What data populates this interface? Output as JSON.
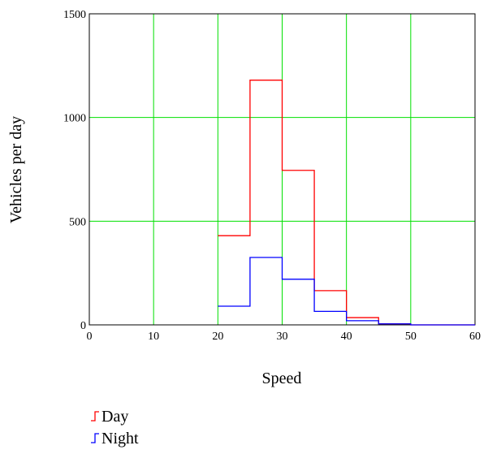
{
  "chart_data": {
    "type": "line",
    "style": "step",
    "xlabel": "Speed",
    "ylabel": "Vehicles per day",
    "xlim": [
      0,
      60
    ],
    "ylim": [
      0,
      1500
    ],
    "xticks": [
      "0",
      "10",
      "20",
      "30",
      "40",
      "50",
      "60"
    ],
    "yticks": [
      "0",
      "500",
      "1000",
      "1500"
    ],
    "grid": true,
    "grid_color": "#00e000",
    "legend": "bottom-left",
    "series": [
      {
        "name": "Day",
        "color": "#ff0000",
        "x": [
          20,
          25,
          30,
          35,
          40,
          45,
          50,
          55,
          60
        ],
        "y": [
          430,
          1180,
          745,
          165,
          35,
          5,
          0,
          0,
          0
        ]
      },
      {
        "name": "Night",
        "color": "#0000ff",
        "x": [
          20,
          25,
          30,
          35,
          40,
          45,
          50,
          55,
          60
        ],
        "y": [
          90,
          325,
          220,
          65,
          20,
          5,
          0,
          0,
          0
        ]
      }
    ]
  }
}
